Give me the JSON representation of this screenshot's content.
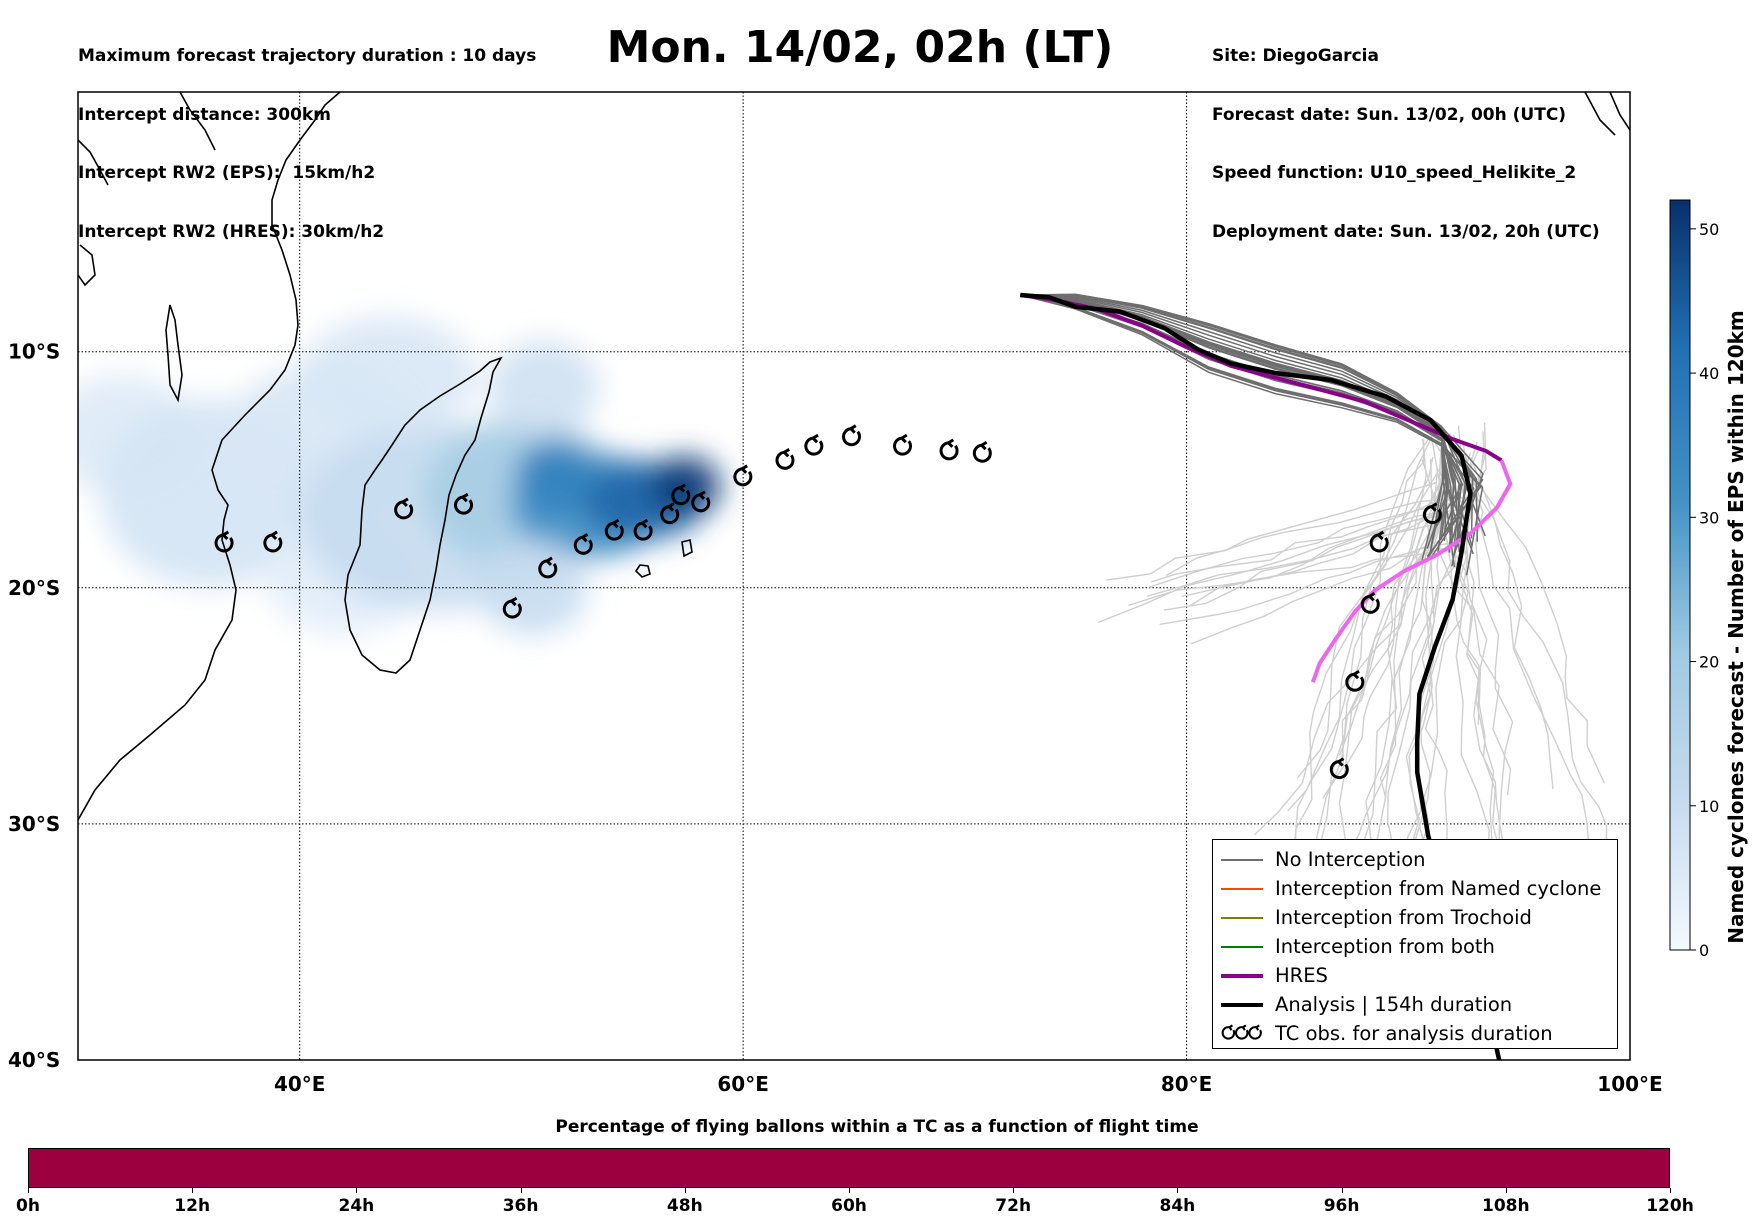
{
  "header": {
    "left_lines": [
      "Maximum forecast trajectory duration : 10 days",
      "Intercept distance: 300km",
      "Intercept RW2 (EPS):  15km/h2",
      "Intercept RW2 (HRES): 30km/h2"
    ],
    "title": "Mon. 14/02, 02h (LT)",
    "right_lines": [
      "Site: DiegoGarcia",
      "Forecast date: Sun. 13/02, 00h (UTC)",
      "Speed function: U10_speed_Helikite_2",
      "Deployment date: Sun. 13/02, 20h (UTC)"
    ]
  },
  "map": {
    "lon_range": [
      30,
      100
    ],
    "lat_range": [
      -40,
      1
    ],
    "lon_ticks": [
      {
        "value": 40,
        "label": "40°E"
      },
      {
        "value": 60,
        "label": "60°E"
      },
      {
        "value": 80,
        "label": "80°E"
      },
      {
        "value": 100,
        "label": "100°E"
      }
    ],
    "lat_ticks": [
      {
        "value": -10,
        "label": "10°S"
      },
      {
        "value": -20,
        "label": "20°S"
      },
      {
        "value": -30,
        "label": "30°S"
      },
      {
        "value": -40,
        "label": "40°S"
      }
    ],
    "colors": {
      "no_interception": "#6e6e6e",
      "faint_trajectory": "#cfcfcf",
      "named_cyclone": "#ff4500",
      "trochoid": "#808000",
      "both": "#008000",
      "hres": "#8b008b",
      "hres_light": "#ee66ee",
      "analysis": "#000000"
    },
    "hres_track": [
      [
        72.5,
        -7.6
      ],
      [
        74,
        -7.8
      ],
      [
        76,
        -8.2
      ],
      [
        78,
        -8.9
      ],
      [
        80,
        -9.8
      ],
      [
        82,
        -10.6
      ],
      [
        84,
        -11.1
      ],
      [
        86,
        -11.6
      ],
      [
        88,
        -12.1
      ],
      [
        90,
        -12.9
      ],
      [
        92,
        -13.7
      ],
      [
        93.5,
        -14.2
      ],
      [
        94.2,
        -14.6
      ]
    ],
    "hres_light_track": [
      [
        94.2,
        -14.6
      ],
      [
        94.6,
        -15.6
      ],
      [
        94,
        -16.6
      ],
      [
        92.8,
        -17.7
      ],
      [
        91.3,
        -18.6
      ],
      [
        89.8,
        -19.3
      ],
      [
        88.5,
        -20.1
      ],
      [
        87.6,
        -21
      ],
      [
        86.7,
        -22.2
      ],
      [
        86,
        -23.2
      ],
      [
        85.7,
        -24
      ]
    ],
    "analysis_track": [
      [
        72.5,
        -7.6
      ],
      [
        73.8,
        -7.7
      ],
      [
        75,
        -8.1
      ],
      [
        77,
        -8.3
      ],
      [
        79,
        -9
      ],
      [
        80.5,
        -9.9
      ],
      [
        82,
        -10.5
      ],
      [
        84,
        -10.9
      ],
      [
        86.5,
        -11.2
      ],
      [
        89,
        -11.9
      ],
      [
        91,
        -12.9
      ],
      [
        92.4,
        -14.4
      ],
      [
        92.8,
        -16
      ],
      [
        92.4,
        -18.5
      ],
      [
        92,
        -20.5
      ],
      [
        91.2,
        -22.5
      ],
      [
        90.5,
        -24.5
      ],
      [
        90.4,
        -26.5
      ],
      [
        90.4,
        -27.8
      ],
      [
        90.9,
        -30.5
      ],
      [
        91.5,
        -32.5
      ],
      [
        92.5,
        -35
      ],
      [
        93.5,
        -37.5
      ],
      [
        94.1,
        -40
      ]
    ],
    "eps_count_bins": [
      {
        "lon": 32,
        "lat": -13.5,
        "count": 5,
        "rx": 3.5,
        "ry": 2.5
      },
      {
        "lon": 36,
        "lat": -16,
        "count": 7,
        "rx": 5,
        "ry": 4
      },
      {
        "lon": 41,
        "lat": -14,
        "count": 6,
        "rx": 4.5,
        "ry": 3.5
      },
      {
        "lon": 42,
        "lat": -19.5,
        "count": 4,
        "rx": 3.5,
        "ry": 2.5
      },
      {
        "lon": 46,
        "lat": -17,
        "count": 10,
        "rx": 6,
        "ry": 4
      },
      {
        "lon": 50,
        "lat": -16,
        "count": 18,
        "rx": 4.5,
        "ry": 3.2
      },
      {
        "lon": 53,
        "lat": -16.5,
        "count": 30,
        "rx": 3.5,
        "ry": 2.3
      },
      {
        "lon": 55.5,
        "lat": -16.3,
        "count": 42,
        "rx": 2.8,
        "ry": 1.7
      },
      {
        "lon": 57.4,
        "lat": -15.7,
        "count": 50,
        "rx": 1.6,
        "ry": 1.3
      },
      {
        "lon": 51.5,
        "lat": -15.3,
        "count": 35,
        "rx": 1.8,
        "ry": 1.6
      },
      {
        "lon": 44,
        "lat": -11,
        "count": 6,
        "rx": 4,
        "ry": 2.5
      },
      {
        "lon": 51,
        "lat": -11.5,
        "count": 8,
        "rx": 2.5,
        "ry": 2
      },
      {
        "lon": 50.5,
        "lat": -20,
        "count": 10,
        "rx": 2.5,
        "ry": 2
      }
    ],
    "tc_obs": [
      [
        36.6,
        -18.1
      ],
      [
        38.8,
        -18.1
      ],
      [
        44.7,
        -16.7
      ],
      [
        47.4,
        -16.5
      ],
      [
        49.6,
        -20.9
      ],
      [
        51.2,
        -19.2
      ],
      [
        52.8,
        -18.2
      ],
      [
        54.2,
        -17.6
      ],
      [
        55.5,
        -17.6
      ],
      [
        56.7,
        -16.9
      ],
      [
        57.2,
        -16.1
      ],
      [
        58.1,
        -16.4
      ],
      [
        60,
        -15.3
      ],
      [
        61.9,
        -14.6
      ],
      [
        63.2,
        -14
      ],
      [
        64.9,
        -13.6
      ],
      [
        67.2,
        -14
      ],
      [
        69.3,
        -14.2
      ],
      [
        70.8,
        -14.3
      ],
      [
        91.1,
        -16.9
      ],
      [
        88.7,
        -18.1
      ],
      [
        88.3,
        -20.7
      ],
      [
        87.6,
        -24
      ],
      [
        86.9,
        -27.7
      ]
    ]
  },
  "legend": {
    "entries": [
      {
        "label": "No Interception",
        "style": "no_interception"
      },
      {
        "label": "Interception from Named cyclone",
        "style": "named_cyclone"
      },
      {
        "label": "Interception from Trochoid",
        "style": "trochoid"
      },
      {
        "label": "Interception from both",
        "style": "both"
      },
      {
        "label": "HRES",
        "style": "hres"
      },
      {
        "label": "Analysis | 154h duration",
        "style": "analysis"
      },
      {
        "label": "TC obs. for analysis duration",
        "style": "tc_obs"
      }
    ]
  },
  "colorbar": {
    "label": "Named cyclones forecast - Number of EPS within 120km",
    "ticks": [
      0,
      10,
      20,
      30,
      40,
      50
    ],
    "max": 52
  },
  "percentage_bar": {
    "title": "Percentage of flying ballons within a TC as a function of flight time",
    "ticks": [
      "0h",
      "12h",
      "24h",
      "36h",
      "48h",
      "60h",
      "72h",
      "84h",
      "96h",
      "108h",
      "120h"
    ],
    "fill_color": "#9c003f"
  }
}
